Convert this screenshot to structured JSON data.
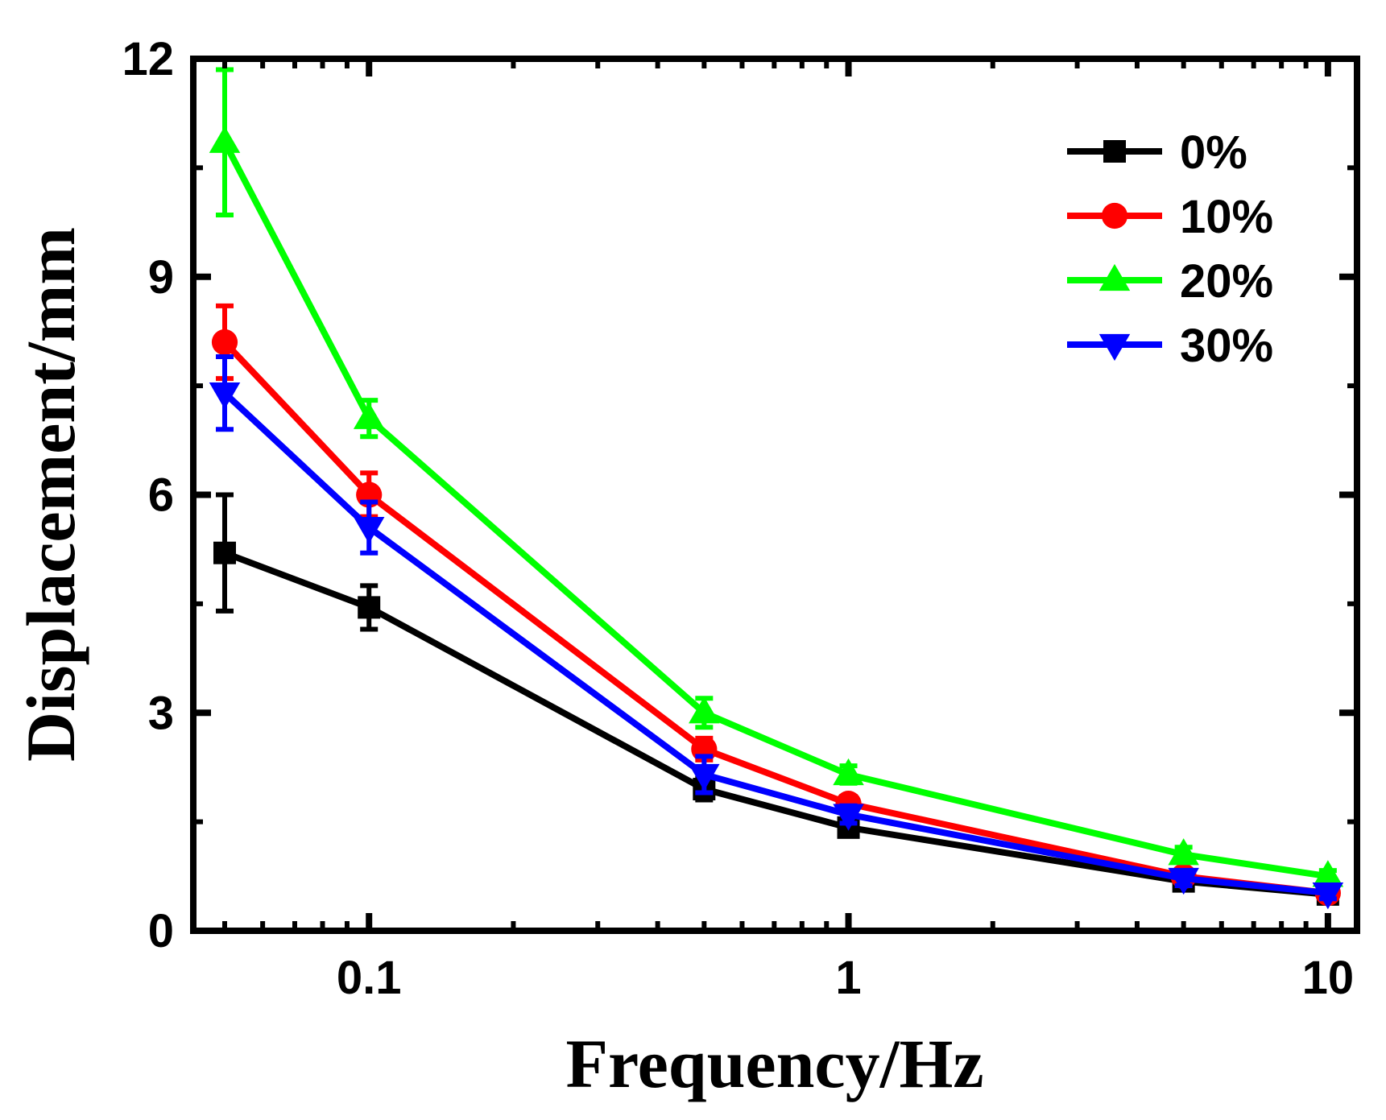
{
  "chart_data": {
    "type": "line",
    "title": "",
    "xlabel": "Frequency/Hz",
    "ylabel": "Displacement/mm",
    "xscale": "log",
    "xlim": [
      0.043,
      11.5
    ],
    "ylim": [
      0,
      12
    ],
    "xticks": [
      0.1,
      1,
      10
    ],
    "xtick_labels": [
      "0.1",
      "1",
      "10"
    ],
    "yticks": [
      0,
      3,
      6,
      9,
      12
    ],
    "ytick_labels": [
      "0",
      "3",
      "6",
      "9",
      "12"
    ],
    "grid": false,
    "legend_position": "top-right",
    "x": [
      0.05,
      0.1,
      0.5,
      1,
      5,
      10
    ],
    "series": [
      {
        "name": "0%",
        "color": "#000000",
        "marker": "square",
        "values": [
          5.2,
          4.45,
          1.95,
          1.42,
          0.68,
          0.5
        ],
        "errors": [
          0.8,
          0.3,
          0.15,
          0.1,
          0.08,
          0.06
        ]
      },
      {
        "name": "10%",
        "color": "#ff0000",
        "marker": "circle",
        "values": [
          8.1,
          6.0,
          2.5,
          1.75,
          0.75,
          0.52
        ],
        "errors": [
          0.5,
          0.3,
          0.15,
          0.1,
          0.08,
          0.06
        ]
      },
      {
        "name": "20%",
        "color": "#00ff00",
        "marker": "triangle-up",
        "values": [
          10.85,
          7.05,
          3.0,
          2.15,
          1.05,
          0.75
        ],
        "errors": [
          1.0,
          0.25,
          0.2,
          0.12,
          0.1,
          0.08
        ]
      },
      {
        "name": "30%",
        "color": "#0000ff",
        "marker": "triangle-down",
        "values": [
          7.4,
          5.55,
          2.15,
          1.6,
          0.72,
          0.52
        ],
        "errors": [
          0.5,
          0.35,
          0.25,
          0.12,
          0.1,
          0.08
        ]
      }
    ]
  }
}
